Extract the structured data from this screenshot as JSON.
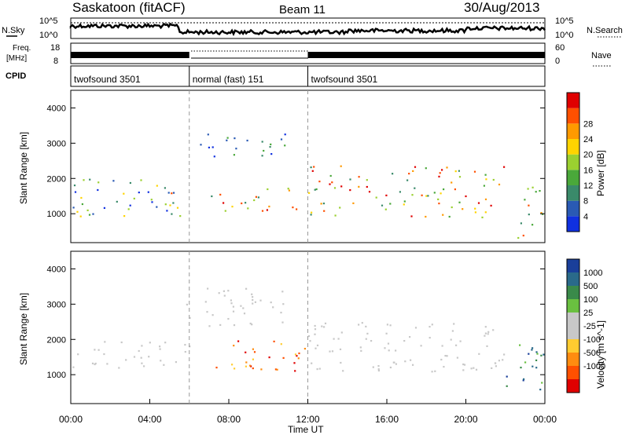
{
  "header": {
    "station": "Saskatoon (fitACF)",
    "beam": "Beam 11",
    "date": "30/Aug/2013"
  },
  "noise_panel": {
    "left_label": "N.Sky",
    "right_label": "N.Search",
    "ticks_left": [
      "10^5",
      "10^0"
    ],
    "ticks_right": [
      "10^5",
      "10^0"
    ]
  },
  "freq_panel": {
    "left_label_line1": "Freq.",
    "left_label_line2": "[MHz]",
    "right_label": "Nave",
    "ticks_left": [
      "18",
      "8"
    ],
    "ticks_right": [
      "60",
      "0"
    ]
  },
  "cpid": {
    "label": "CPID",
    "segments": [
      {
        "label": "twofsound 3501",
        "start_hour": 0,
        "end_hour": 6
      },
      {
        "label": "normal (fast) 151",
        "start_hour": 6,
        "end_hour": 12
      },
      {
        "label": "twofsound 3501",
        "start_hour": 12,
        "end_hour": 24
      }
    ]
  },
  "time_axis": {
    "label": "Time UT",
    "ticks": [
      "00:00",
      "04:00",
      "08:00",
      "12:00",
      "16:00",
      "20:00",
      "00:00"
    ]
  },
  "power_panel": {
    "ylabel": "Slant Range [km]",
    "yticks": [
      "1000",
      "2000",
      "3000",
      "4000"
    ],
    "colorbar_label": "Power [dB]",
    "colorbar_ticks": [
      "4",
      "8",
      "12",
      "16",
      "20",
      "24",
      "28"
    ],
    "colors": [
      "#1030e0",
      "#2a5ab4",
      "#3a8a6a",
      "#4aa83a",
      "#9bd030",
      "#ffd400",
      "#ff9a00",
      "#ff5000",
      "#e00000"
    ]
  },
  "velocity_panel": {
    "ylabel": "Slant Range [km]",
    "yticks": [
      "1000",
      "2000",
      "3000",
      "4000"
    ],
    "colorbar_label": "Velocity [m s^-1]",
    "colorbar_ticks": [
      "1000",
      "500",
      "100",
      "25",
      "-25",
      "-100",
      "-500",
      "-1000"
    ],
    "colors": [
      "#1a3f9a",
      "#2a6a8a",
      "#3a8a4a",
      "#6ac040",
      "#c8c8c8",
      "#c8c8c8",
      "#ffcc30",
      "#ff8c10",
      "#ff5000",
      "#e00000"
    ]
  },
  "chart_data": {
    "type": "heatmap",
    "x_range_hours": [
      0,
      24
    ],
    "y_range_km": [
      180,
      4500
    ],
    "power_blobs": [
      {
        "t0": 0,
        "t1": 6,
        "r0": 900,
        "r1": 2000,
        "level": "mid"
      },
      {
        "t0": 4.5,
        "t1": 5.5,
        "r0": 900,
        "r1": 1700,
        "level": "high"
      },
      {
        "t0": 5.8,
        "t1": 11,
        "r0": 2600,
        "r1": 3300,
        "level": "low"
      },
      {
        "t0": 7,
        "t1": 12,
        "r0": 1100,
        "r1": 1800,
        "level": "high"
      },
      {
        "t0": 12,
        "t1": 22,
        "r0": 900,
        "r1": 2400,
        "level": "high"
      },
      {
        "t0": 22.5,
        "t1": 24,
        "r0": 300,
        "r1": 1800,
        "level": "high"
      }
    ],
    "velocity_blobs": [
      {
        "t0": 0,
        "t1": 6,
        "r0": 1200,
        "r1": 2000,
        "class": "ground"
      },
      {
        "t0": 5.8,
        "t1": 11,
        "r0": 2400,
        "r1": 3500,
        "class": "ground"
      },
      {
        "t0": 7,
        "t1": 12,
        "r0": 1100,
        "r1": 2000,
        "class": "negative"
      },
      {
        "t0": 12,
        "t1": 22,
        "r0": 1100,
        "r1": 2500,
        "class": "ground"
      },
      {
        "t0": 22,
        "t1": 24,
        "r0": 500,
        "r1": 2000,
        "class": "positive"
      }
    ]
  }
}
